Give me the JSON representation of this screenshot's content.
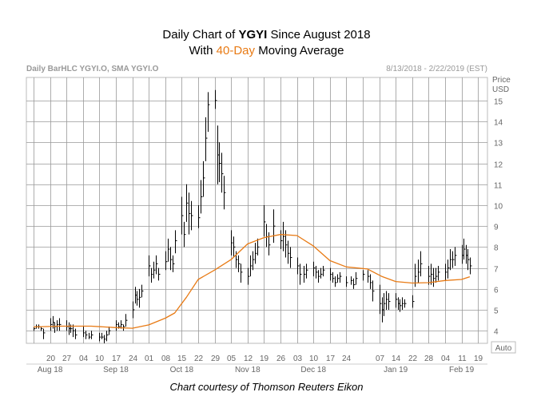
{
  "title": {
    "line1_prefix": "Daily Chart of ",
    "ticker": "YGYI",
    "line1_suffix": " Since August 2018",
    "line2_prefix": "With ",
    "line2_accent": "40-Day",
    "line2_suffix": " Moving Average"
  },
  "credit": "Chart courtesy of Thomson Reuters Eikon",
  "colors": {
    "accent": "#e87a14",
    "grid": "#999999",
    "bars": "#000000",
    "labels": "#666666"
  },
  "chart_data": {
    "type": "ohlc-bar-with-line",
    "header_left": "Daily BarHLC YGYI.O, SMA YGYI.O",
    "header_right": "8/13/2018 - 2/22/2019 (EST)",
    "y_axis_title": [
      "Price",
      "USD"
    ],
    "ylim": [
      3.4,
      16.1
    ],
    "y_ticks": [
      4,
      5,
      6,
      7,
      8,
      9,
      10,
      11,
      12,
      13,
      14,
      15
    ],
    "y_tick_labels": [
      "4",
      "5",
      "6",
      "7",
      "8",
      "9",
      "10",
      "11",
      "12",
      "13",
      "14",
      "15"
    ],
    "auto_label": "Auto",
    "grid": true,
    "x_day_ticks": [
      {
        "label": "",
        "date": "2018-08-13"
      },
      {
        "label": "20",
        "date": "2018-08-20"
      },
      {
        "label": "27",
        "date": "2018-08-27"
      },
      {
        "label": "04",
        "date": "2018-09-04"
      },
      {
        "label": "10",
        "date": "2018-09-10"
      },
      {
        "label": "17",
        "date": "2018-09-17"
      },
      {
        "label": "24",
        "date": "2018-09-24"
      },
      {
        "label": "01",
        "date": "2018-10-01"
      },
      {
        "label": "08",
        "date": "2018-10-08"
      },
      {
        "label": "15",
        "date": "2018-10-15"
      },
      {
        "label": "22",
        "date": "2018-10-22"
      },
      {
        "label": "29",
        "date": "2018-10-29"
      },
      {
        "label": "05",
        "date": "2018-11-05"
      },
      {
        "label": "12",
        "date": "2018-11-12"
      },
      {
        "label": "19",
        "date": "2018-11-19"
      },
      {
        "label": "26",
        "date": "2018-11-26"
      },
      {
        "label": "03",
        "date": "2018-12-03"
      },
      {
        "label": "10",
        "date": "2018-12-10"
      },
      {
        "label": "17",
        "date": "2018-12-17"
      },
      {
        "label": "24",
        "date": "2018-12-24"
      },
      {
        "label": "",
        "date": "2018-12-31"
      },
      {
        "label": "07",
        "date": "2019-01-07"
      },
      {
        "label": "14",
        "date": "2019-01-14"
      },
      {
        "label": "22",
        "date": "2019-01-22"
      },
      {
        "label": "28",
        "date": "2019-01-28"
      },
      {
        "label": "04",
        "date": "2019-02-04"
      },
      {
        "label": "11",
        "date": "2019-02-11"
      },
      {
        "label": "19",
        "date": "2019-02-19"
      }
    ],
    "x_month_labels": [
      {
        "label": "Aug 18",
        "date": "2018-08-20"
      },
      {
        "label": "Sep 18",
        "date": "2018-09-17"
      },
      {
        "label": "Oct 18",
        "date": "2018-10-15"
      },
      {
        "label": "Nov 18",
        "date": "2018-11-12"
      },
      {
        "label": "Dec 18",
        "date": "2018-12-10"
      },
      {
        "label": "Jan 19",
        "date": "2019-01-14"
      },
      {
        "label": "Feb 19",
        "date": "2019-02-11"
      }
    ],
    "bar_dates": [
      "2018-08-13",
      "2018-08-14",
      "2018-08-15",
      "2018-08-16",
      "2018-08-17",
      "2018-08-20",
      "2018-08-21",
      "2018-08-22",
      "2018-08-23",
      "2018-08-24",
      "2018-08-27",
      "2018-08-28",
      "2018-08-29",
      "2018-08-30",
      "2018-08-31",
      "2018-09-04",
      "2018-09-05",
      "2018-09-06",
      "2018-09-07",
      "2018-09-10",
      "2018-09-11",
      "2018-09-12",
      "2018-09-13",
      "2018-09-14",
      "2018-09-17",
      "2018-09-18",
      "2018-09-19",
      "2018-09-20",
      "2018-09-21",
      "2018-09-24",
      "2018-09-25",
      "2018-09-26",
      "2018-09-27",
      "2018-09-28",
      "2018-10-01",
      "2018-10-02",
      "2018-10-03",
      "2018-10-04",
      "2018-10-05",
      "2018-10-08",
      "2018-10-09",
      "2018-10-10",
      "2018-10-11",
      "2018-10-12",
      "2018-10-15",
      "2018-10-16",
      "2018-10-17",
      "2018-10-18",
      "2018-10-19",
      "2018-10-22",
      "2018-10-23",
      "2018-10-24",
      "2018-10-25",
      "2018-10-26",
      "2018-10-29",
      "2018-10-30",
      "2018-10-31",
      "2018-11-01",
      "2018-11-02",
      "2018-11-05",
      "2018-11-06",
      "2018-11-07",
      "2018-11-08",
      "2018-11-09",
      "2018-11-12",
      "2018-11-13",
      "2018-11-14",
      "2018-11-15",
      "2018-11-16",
      "2018-11-19",
      "2018-11-20",
      "2018-11-21",
      "2018-11-23",
      "2018-11-26",
      "2018-11-27",
      "2018-11-28",
      "2018-11-29",
      "2018-11-30",
      "2018-12-03",
      "2018-12-04",
      "2018-12-06",
      "2018-12-07",
      "2018-12-10",
      "2018-12-11",
      "2018-12-12",
      "2018-12-13",
      "2018-12-14",
      "2018-12-17",
      "2018-12-18",
      "2018-12-19",
      "2018-12-20",
      "2018-12-21",
      "2018-12-24",
      "2018-12-26",
      "2018-12-27",
      "2018-12-28",
      "2018-12-31",
      "2019-01-02",
      "2019-01-03",
      "2019-01-04",
      "2019-01-07",
      "2019-01-08",
      "2019-01-09",
      "2019-01-10",
      "2019-01-11",
      "2019-01-14",
      "2019-01-15",
      "2019-01-16",
      "2019-01-17",
      "2019-01-18",
      "2019-01-22",
      "2019-01-23",
      "2019-01-24",
      "2019-01-25",
      "2019-01-28",
      "2019-01-29",
      "2019-01-30",
      "2019-01-31",
      "2019-02-01",
      "2019-02-04",
      "2019-02-05",
      "2019-02-06",
      "2019-02-07",
      "2019-02-08",
      "2019-02-11",
      "2019-02-12",
      "2019-02-13",
      "2019-02-14",
      "2019-02-15"
    ],
    "high": [
      4.2,
      4.3,
      4.3,
      4.2,
      4.1,
      4.6,
      4.7,
      4.4,
      4.5,
      4.6,
      4.5,
      4.4,
      4.3,
      4.3,
      4.1,
      4.2,
      4.0,
      3.9,
      4.0,
      3.9,
      3.9,
      3.8,
      4.0,
      4.2,
      4.5,
      4.4,
      4.5,
      4.3,
      4.8,
      5.4,
      6.1,
      5.9,
      6.0,
      6.2,
      7.6,
      7.0,
      7.3,
      7.6,
      7.0,
      7.8,
      8.4,
      8.0,
      7.6,
      8.8,
      10.4,
      9.2,
      11.0,
      10.6,
      10.2,
      10.0,
      11.2,
      12.1,
      14.2,
      15.4,
      15.5,
      13.8,
      13.0,
      12.5,
      11.4,
      8.8,
      8.5,
      7.8,
      7.6,
      7.2,
      7.0,
      7.6,
      7.8,
      8.2,
      8.4,
      10.0,
      9.1,
      8.7,
      9.8,
      8.8,
      9.2,
      8.8,
      8.3,
      8.0,
      7.5,
      7.2,
      7.1,
      7.2,
      7.3,
      7.1,
      6.9,
      7.0,
      7.1,
      7.0,
      6.8,
      6.6,
      6.7,
      6.8,
      6.6,
      6.6,
      6.5,
      6.8,
      6.9,
      6.9,
      6.7,
      6.4,
      6.2,
      5.6,
      5.8,
      5.9,
      5.8,
      5.8,
      5.6,
      5.5,
      5.6,
      5.5,
      5.7,
      7.2,
      7.4,
      7.8,
      7.1,
      7.2,
      7.0,
      7.0,
      7.1,
      7.2,
      7.4,
      7.9,
      7.8,
      8.0,
      8.1,
      8.4,
      8.1,
      7.9,
      7.5,
      7.3,
      7.4,
      7.7,
      8.4,
      9.3
    ],
    "low": [
      4.0,
      4.1,
      4.1,
      4.0,
      3.6,
      4.0,
      4.1,
      3.9,
      4.0,
      4.0,
      4.0,
      3.8,
      3.9,
      3.7,
      3.6,
      3.7,
      3.6,
      3.6,
      3.6,
      3.5,
      3.6,
      3.4,
      3.5,
      3.8,
      4.0,
      4.1,
      4.1,
      4.0,
      4.2,
      4.6,
      5.3,
      5.2,
      5.1,
      5.6,
      6.6,
      6.3,
      6.5,
      6.7,
      6.4,
      6.9,
      7.3,
      6.9,
      6.8,
      7.7,
      8.6,
      8.0,
      9.2,
      8.6,
      8.8,
      8.9,
      9.6,
      10.4,
      12.1,
      13.5,
      14.6,
      11.0,
      11.1,
      10.6,
      9.8,
      7.6,
      7.5,
      7.0,
      6.8,
      6.3,
      6.2,
      6.6,
      6.9,
      7.2,
      7.6,
      8.5,
      8.0,
      7.6,
      8.2,
      7.9,
      7.8,
      7.5,
      7.2,
      7.0,
      6.7,
      6.2,
      6.3,
      6.5,
      6.6,
      6.5,
      6.3,
      6.5,
      6.6,
      6.4,
      6.3,
      6.1,
      6.3,
      6.3,
      6.1,
      6.2,
      6.0,
      6.2,
      6.4,
      6.3,
      6.0,
      5.4,
      4.8,
      4.4,
      4.7,
      5.0,
      5.0,
      5.1,
      5.0,
      4.9,
      5.0,
      5.1,
      5.1,
      6.1,
      6.3,
      6.6,
      6.2,
      6.2,
      6.1,
      6.3,
      6.4,
      6.4,
      6.5,
      6.9,
      7.0,
      7.1,
      7.2,
      7.4,
      7.2,
      6.9,
      6.7,
      6.6,
      6.7,
      7.0,
      7.6,
      8.2
    ],
    "close": [
      4.1,
      4.2,
      4.2,
      4.1,
      3.9,
      4.3,
      4.4,
      4.2,
      4.3,
      4.3,
      4.2,
      4.1,
      4.1,
      4.0,
      3.8,
      3.9,
      3.8,
      3.7,
      3.8,
      3.7,
      3.7,
      3.6,
      3.8,
      4.0,
      4.3,
      4.2,
      4.3,
      4.2,
      4.5,
      5.0,
      5.7,
      5.5,
      5.6,
      5.9,
      7.1,
      6.7,
      6.9,
      7.2,
      6.7,
      7.3,
      7.9,
      7.4,
      7.2,
      8.3,
      9.5,
      8.6,
      10.1,
      9.6,
      9.5,
      9.4,
      10.4,
      11.3,
      13.2,
      14.8,
      15.0,
      12.4,
      12.0,
      11.5,
      10.6,
      8.2,
      8.0,
      7.4,
      7.2,
      6.8,
      6.6,
      7.1,
      7.4,
      7.7,
      8.0,
      9.2,
      8.5,
      8.1,
      9.0,
      8.3,
      8.5,
      8.1,
      7.7,
      7.5,
      7.1,
      6.7,
      6.7,
      6.9,
      7.0,
      6.8,
      6.6,
      6.7,
      6.9,
      6.7,
      6.5,
      6.3,
      6.5,
      6.6,
      6.3,
      6.4,
      6.2,
      6.5,
      6.7,
      6.6,
      6.3,
      5.9,
      5.3,
      5.0,
      5.3,
      5.5,
      5.4,
      5.5,
      5.3,
      5.2,
      5.3,
      5.3,
      5.4,
      6.6,
      6.8,
      7.2,
      6.6,
      6.7,
      6.5,
      6.6,
      6.8,
      6.8,
      7.0,
      7.4,
      7.4,
      7.6,
      7.6,
      7.9,
      7.6,
      7.4,
      7.1,
      6.9,
      7.0,
      7.4,
      8.0,
      9.0
    ],
    "sma40": [
      {
        "date": "2018-08-13",
        "value": 4.18
      },
      {
        "date": "2018-08-24",
        "value": 4.22
      },
      {
        "date": "2018-09-07",
        "value": 4.22
      },
      {
        "date": "2018-09-17",
        "value": 4.15
      },
      {
        "date": "2018-09-24",
        "value": 4.12
      },
      {
        "date": "2018-10-01",
        "value": 4.28
      },
      {
        "date": "2018-10-08",
        "value": 4.6
      },
      {
        "date": "2018-10-12",
        "value": 4.85
      },
      {
        "date": "2018-10-17",
        "value": 5.6
      },
      {
        "date": "2018-10-22",
        "value": 6.45
      },
      {
        "date": "2018-10-29",
        "value": 6.9
      },
      {
        "date": "2018-11-05",
        "value": 7.4
      },
      {
        "date": "2018-11-12",
        "value": 8.15
      },
      {
        "date": "2018-11-19",
        "value": 8.45
      },
      {
        "date": "2018-11-26",
        "value": 8.6
      },
      {
        "date": "2018-12-03",
        "value": 8.55
      },
      {
        "date": "2018-12-10",
        "value": 8.05
      },
      {
        "date": "2018-12-17",
        "value": 7.35
      },
      {
        "date": "2018-12-24",
        "value": 7.05
      },
      {
        "date": "2019-01-02",
        "value": 6.95
      },
      {
        "date": "2019-01-08",
        "value": 6.6
      },
      {
        "date": "2019-01-14",
        "value": 6.35
      },
      {
        "date": "2019-01-22",
        "value": 6.28
      },
      {
        "date": "2019-01-28",
        "value": 6.3
      },
      {
        "date": "2019-02-04",
        "value": 6.4
      },
      {
        "date": "2019-02-11",
        "value": 6.45
      },
      {
        "date": "2019-02-15",
        "value": 6.58
      }
    ]
  }
}
